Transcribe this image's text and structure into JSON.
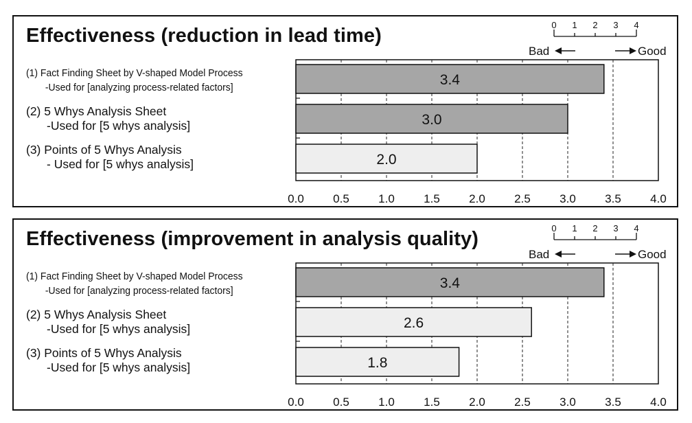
{
  "scale_legend": {
    "numbers": [
      "0",
      "1",
      "2",
      "3",
      "4"
    ],
    "bad": "Bad",
    "good": "Good"
  },
  "chart_data": [
    {
      "type": "bar",
      "orientation": "horizontal",
      "title": "Effectiveness (reduction in lead time)",
      "categories": [
        [
          "(1) Fact Finding Sheet by V-shaped Model Process",
          "-Used for [analyzing process-related factors]"
        ],
        [
          "(2) 5 Whys Analysis Sheet",
          "-Used for [5 whys analysis]"
        ],
        [
          "(3) Points of 5 Whys Analysis",
          "- Used for [5 whys analysis]"
        ]
      ],
      "values": [
        3.4,
        3.0,
        2.0
      ],
      "value_labels": [
        "3.4",
        "3.0",
        "2.0"
      ],
      "bar_colors": [
        "#a6a6a6",
        "#a6a6a6",
        "#eeeeee"
      ],
      "xlim": [
        0.0,
        4.0
      ],
      "xticks": [
        "0.0",
        "0.5",
        "1.0",
        "1.5",
        "2.0",
        "2.5",
        "3.0",
        "3.5",
        "4.0"
      ],
      "grid": "vertical dashed",
      "xlabel": "",
      "ylabel": ""
    },
    {
      "type": "bar",
      "orientation": "horizontal",
      "title": "Effectiveness (improvement in analysis quality)",
      "categories": [
        [
          "(1) Fact Finding Sheet by V-shaped Model Process",
          "-Used for [analyzing process-related factors]"
        ],
        [
          "(2) 5 Whys Analysis Sheet",
          "-Used for [5 whys analysis]"
        ],
        [
          "(3) Points of 5 Whys Analysis",
          "-Used for [5 whys analysis]"
        ]
      ],
      "values": [
        3.4,
        2.6,
        1.8
      ],
      "value_labels": [
        "3.4",
        "2.6",
        "1.8"
      ],
      "bar_colors": [
        "#a6a6a6",
        "#eeeeee",
        "#eeeeee"
      ],
      "xlim": [
        0.0,
        4.0
      ],
      "xticks": [
        "0.0",
        "0.5",
        "1.0",
        "1.5",
        "2.0",
        "2.5",
        "3.0",
        "3.5",
        "4.0"
      ],
      "grid": "vertical dashed",
      "xlabel": "",
      "ylabel": ""
    }
  ]
}
